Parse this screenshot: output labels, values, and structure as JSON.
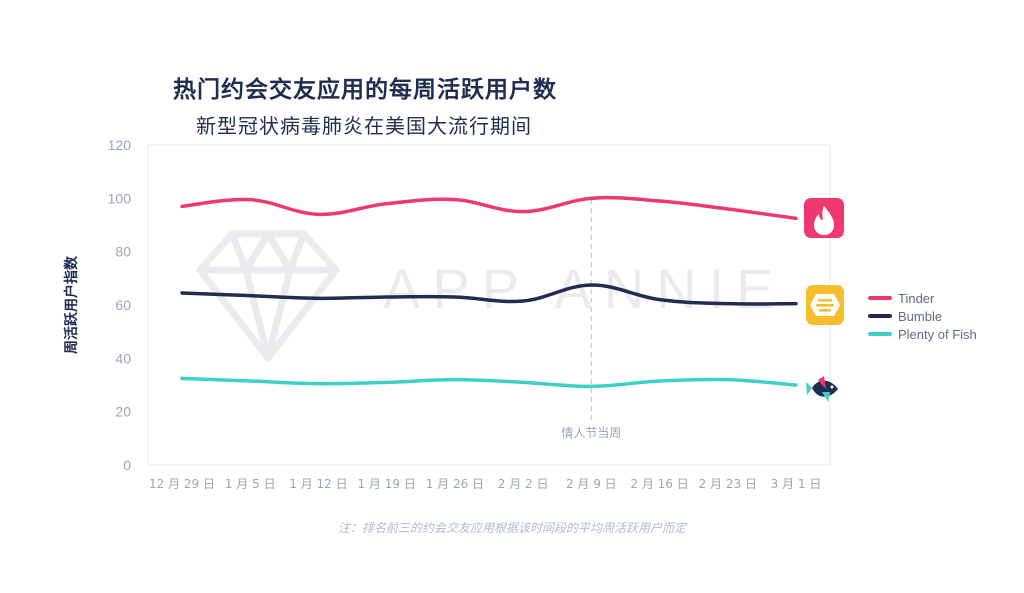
{
  "title": "热门约会交友应用的每周活跃用户数",
  "subtitle": "新型冠状病毒肺炎在美国大流行期间",
  "footnote": "注：排名前三的约会交友应用根据该时间段的平均周活跃用户而定",
  "watermark": "APP ANNIE",
  "colors": {
    "tinder": "#f0386f",
    "bumble": "#1f2d4f",
    "pof": "#3ecfc8",
    "grid": "#e3e8f0",
    "axis_text": "#9aa6b8"
  },
  "chart_data": {
    "type": "line",
    "title": "热门约会交友应用的每周活跃用户数",
    "subtitle": "新型冠状病毒肺炎在美国大流行期间",
    "xlabel": "",
    "ylabel": "周活跃用户指数",
    "ylim": [
      0,
      120
    ],
    "yticks": [
      0,
      20,
      40,
      60,
      80,
      100,
      120
    ],
    "grid": false,
    "legend_position": "right",
    "categories": [
      "12 月 29 日",
      "1 月 5 日",
      "1 月 12 日",
      "1 月 19 日",
      "1 月 26 日",
      "2 月 2 日",
      "2 月 9 日",
      "2 月 16 日",
      "2 月 23 日",
      "3 月 1 日"
    ],
    "series": [
      {
        "name": "Tinder",
        "icon": "tinder-flame-icon",
        "color": "#f0386f",
        "values": [
          97,
          99.5,
          94,
          98,
          99.5,
          95,
          100,
          99,
          96,
          92.5
        ]
      },
      {
        "name": "Bumble",
        "icon": "bumble-hive-icon",
        "color": "#1f2d4f",
        "values": [
          64.5,
          63.5,
          62.5,
          63,
          63,
          61.5,
          67.5,
          62,
          60.5,
          60.5
        ]
      },
      {
        "name": "Plenty of Fish",
        "icon": "fish-icon",
        "color": "#3ecfc8",
        "values": [
          32.5,
          31.5,
          30.5,
          31,
          32,
          31,
          29.5,
          31.5,
          32,
          30
        ]
      }
    ],
    "annotations": [
      {
        "category": "2 月 9 日",
        "text": "情人节当周",
        "style": "dashed-vertical-line"
      }
    ]
  }
}
